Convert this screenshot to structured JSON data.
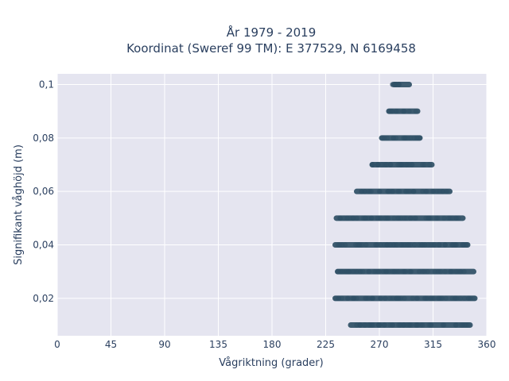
{
  "chart_data": {
    "type": "scatter",
    "title_line1": "År 1979 - 2019",
    "title_line2": "Koordinat (Sweref 99 TM): E 377529, N 6169458",
    "xlabel": "Vågriktning (grader)",
    "ylabel": "Signifikant våghöjd (m)",
    "xlim": [
      0,
      360
    ],
    "ylim": [
      0.006,
      0.104
    ],
    "x_ticks": [
      "0",
      "45",
      "90",
      "135",
      "180",
      "225",
      "270",
      "315",
      "360"
    ],
    "x_tick_values": [
      0,
      45,
      90,
      135,
      180,
      225,
      270,
      315,
      360
    ],
    "y_ticks": [
      "0,02",
      "0,04",
      "0,06",
      "0,08",
      "0,1"
    ],
    "y_tick_values": [
      0.02,
      0.04,
      0.06,
      0.08,
      0.1
    ],
    "grid": true,
    "marker_color": "#2f5066",
    "plot_background": "#e5e5f0",
    "bands": [
      {
        "y": 0.01,
        "x_min": 246,
        "x_max": 346
      },
      {
        "y": 0.02,
        "x_min": 233,
        "x_max": 350
      },
      {
        "y": 0.03,
        "x_min": 235,
        "x_max": 349
      },
      {
        "y": 0.04,
        "x_min": 233,
        "x_max": 344
      },
      {
        "y": 0.05,
        "x_min": 234,
        "x_max": 340
      },
      {
        "y": 0.06,
        "x_min": 251,
        "x_max": 329
      },
      {
        "y": 0.07,
        "x_min": 264,
        "x_max": 314
      },
      {
        "y": 0.08,
        "x_min": 272,
        "x_max": 304
      },
      {
        "y": 0.09,
        "x_min": 278,
        "x_max": 302
      },
      {
        "y": 0.1,
        "x_min": 282,
        "x_max": 295
      }
    ],
    "outliers": [
      {
        "x": 281,
        "y": 0.1
      }
    ]
  }
}
